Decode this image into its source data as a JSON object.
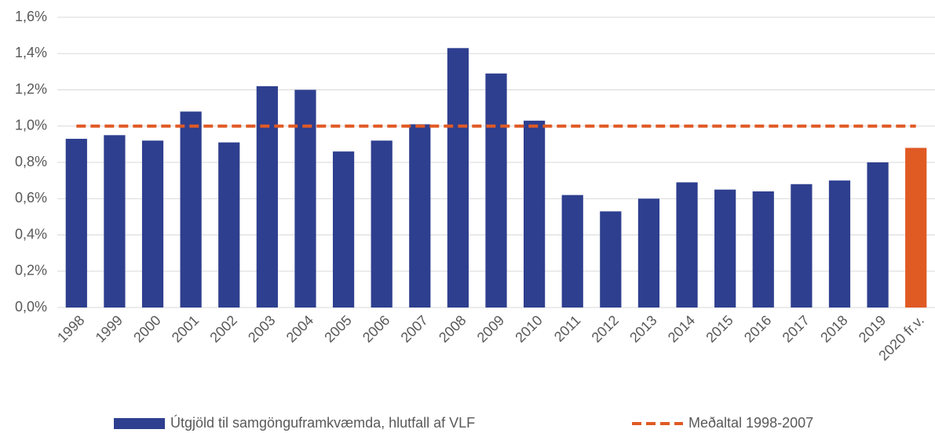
{
  "chart_data": {
    "type": "bar",
    "categories": [
      "1998",
      "1999",
      "2000",
      "2001",
      "2002",
      "2003",
      "2004",
      "2005",
      "2006",
      "2007",
      "2008",
      "2009",
      "2010",
      "2011",
      "2012",
      "2013",
      "2014",
      "2015",
      "2016",
      "2017",
      "2018",
      "2019",
      "2020 fr.v."
    ],
    "series": [
      {
        "name": "Útgjöld til samgönguframkvæmda, hlutfall af VLF",
        "type": "bar",
        "color": "#2e3f8f",
        "colors": [
          "#2e3f8f",
          "#2e3f8f",
          "#2e3f8f",
          "#2e3f8f",
          "#2e3f8f",
          "#2e3f8f",
          "#2e3f8f",
          "#2e3f8f",
          "#2e3f8f",
          "#2e3f8f",
          "#2e3f8f",
          "#2e3f8f",
          "#2e3f8f",
          "#2e3f8f",
          "#2e3f8f",
          "#2e3f8f",
          "#2e3f8f",
          "#2e3f8f",
          "#2e3f8f",
          "#2e3f8f",
          "#2e3f8f",
          "#2e3f8f",
          "#e05a24"
        ],
        "values": [
          0.93,
          0.95,
          0.92,
          1.08,
          0.91,
          1.22,
          1.2,
          0.86,
          0.92,
          1.01,
          1.43,
          1.29,
          1.03,
          0.62,
          0.53,
          0.6,
          0.69,
          0.65,
          0.64,
          0.68,
          0.7,
          0.8,
          0.88
        ]
      },
      {
        "name": "Meðaltal 1998-2007",
        "type": "line",
        "dashed": true,
        "color": "#e05a24",
        "values": [
          1.0,
          1.0,
          1.0,
          1.0,
          1.0,
          1.0,
          1.0,
          1.0,
          1.0,
          1.0,
          1.0,
          1.0,
          1.0,
          1.0,
          1.0,
          1.0,
          1.0,
          1.0,
          1.0,
          1.0,
          1.0,
          1.0,
          1.0
        ]
      }
    ],
    "ylim": [
      0,
      1.6
    ],
    "yticks": [
      {
        "value": 0,
        "label": "0,0%"
      },
      {
        "value": 0.2,
        "label": "0,2%"
      },
      {
        "value": 0.4,
        "label": "0,4%"
      },
      {
        "value": 0.6,
        "label": "0,6%"
      },
      {
        "value": 0.8,
        "label": "0,8%"
      },
      {
        "value": 1.0,
        "label": "1,0%"
      },
      {
        "value": 1.2,
        "label": "1,2%"
      },
      {
        "value": 1.4,
        "label": "1,4%"
      },
      {
        "value": 1.6,
        "label": "1,6%"
      }
    ],
    "grid": true,
    "legend": "bottom"
  }
}
